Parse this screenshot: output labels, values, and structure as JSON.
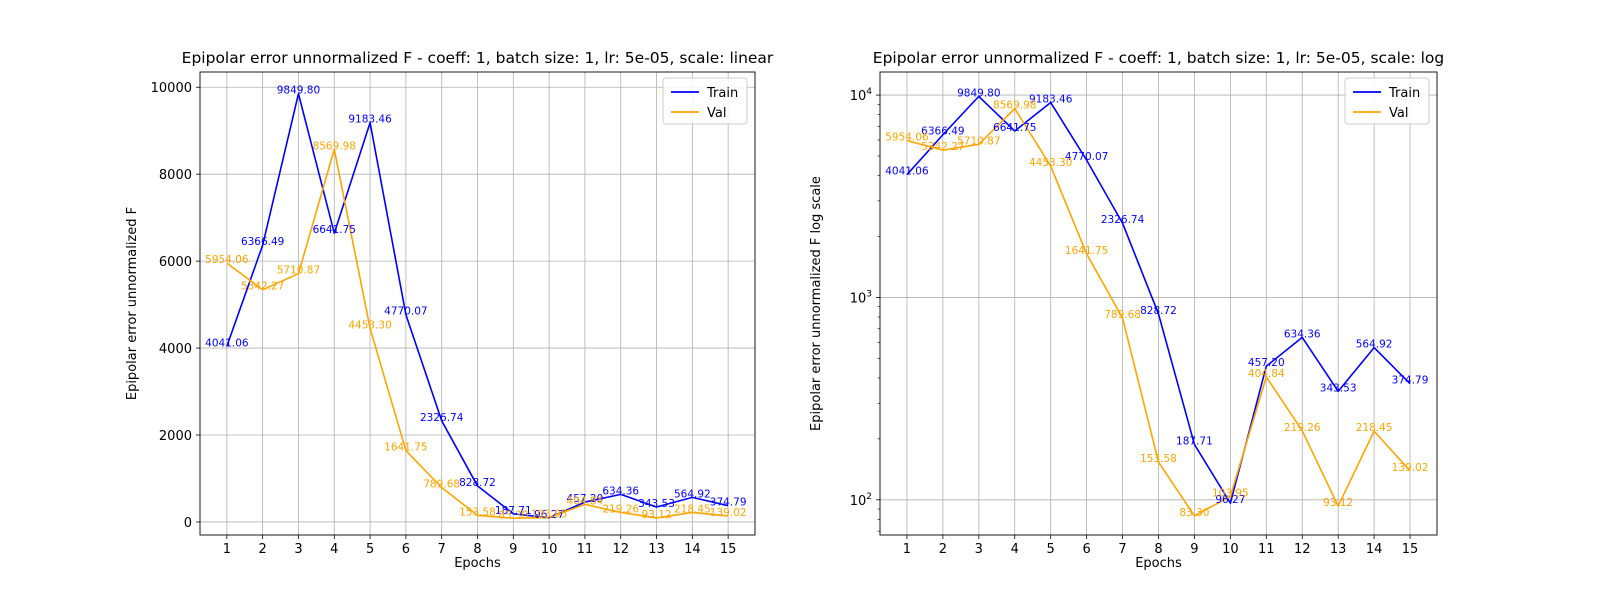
{
  "chart_data": [
    {
      "type": "line",
      "title": "Epipolar error unnormalized F - coeff: 1, batch size: 1, lr: 5e-05, scale: linear",
      "xlabel": "Epochs",
      "ylabel": "Epipolar error unnormalized F",
      "scale": "linear",
      "x": [
        1,
        2,
        3,
        4,
        5,
        6,
        7,
        8,
        9,
        10,
        11,
        12,
        13,
        14,
        15
      ],
      "xlim": [
        0.25,
        15.75
      ],
      "ylim": [
        -300,
        10350
      ],
      "yticks": [
        0,
        2000,
        4000,
        6000,
        8000,
        10000
      ],
      "ytick_labels": [
        "0",
        "2000",
        "4000",
        "6000",
        "8000",
        "10000"
      ],
      "grid": true,
      "legend": "top-right",
      "series": [
        {
          "name": "Train",
          "color": "#0000ff",
          "values": [
            4041.06,
            6366.49,
            9849.8,
            6641.75,
            9183.46,
            4770.07,
            2326.74,
            828.72,
            187.71,
            96.27,
            457.2,
            634.36,
            343.53,
            564.92,
            374.79
          ],
          "labels": [
            "4041.06",
            "6366.49",
            "9849.80",
            "6641.75",
            "9183.46",
            "4770.07",
            "2326.74",
            "828.72",
            "187.71",
            "96.27",
            "457.20",
            "634.36",
            "343.53",
            "564.92",
            "374.79"
          ]
        },
        {
          "name": "Val",
          "color": "#ffa500",
          "values": [
            5954.06,
            5342.27,
            5710.87,
            8569.98,
            4453.3,
            1641.75,
            789.68,
            153.58,
            83.3,
            103.95,
            404.84,
            219.26,
            93.12,
            218.45,
            139.02
          ],
          "labels": [
            "5954.06",
            "5342.27",
            "5710.87",
            "8569.98",
            "4453.30",
            "1641.75",
            "789.68",
            "153.58",
            "83.30",
            "103.95",
            "404.84",
            "219.26",
            "93.12",
            "218.45",
            "139.02"
          ]
        }
      ]
    },
    {
      "type": "line",
      "title": "Epipolar error unnormalized F - coeff: 1, batch size: 1, lr: 5e-05, scale: log",
      "xlabel": "Epochs",
      "ylabel": "Epipolar error unnormalized F log scale",
      "scale": "log",
      "x": [
        1,
        2,
        3,
        4,
        5,
        6,
        7,
        8,
        9,
        10,
        11,
        12,
        13,
        14,
        15
      ],
      "xlim": [
        0.25,
        15.75
      ],
      "ylim": [
        67,
        13000
      ],
      "yticks": [
        100,
        1000,
        10000
      ],
      "ytick_labels": [
        {
          "base": "10",
          "exp": "2"
        },
        {
          "base": "10",
          "exp": "3"
        },
        {
          "base": "10",
          "exp": "4"
        }
      ],
      "grid": true,
      "legend": "top-right",
      "series": [
        {
          "name": "Train",
          "color": "#0000ff",
          "values": [
            4041.06,
            6366.49,
            9849.8,
            6641.75,
            9183.46,
            4770.07,
            2326.74,
            828.72,
            187.71,
            96.27,
            457.2,
            634.36,
            343.53,
            564.92,
            374.79
          ],
          "labels": [
            "4041.06",
            "6366.49",
            "9849.80",
            "6641.75",
            "9183.46",
            "4770.07",
            "2326.74",
            "828.72",
            "187.71",
            "96.27",
            "457.20",
            "634.36",
            "343.53",
            "564.92",
            "374.79"
          ]
        },
        {
          "name": "Val",
          "color": "#ffa500",
          "values": [
            5954.06,
            5342.27,
            5710.87,
            8569.98,
            4453.3,
            1641.75,
            789.68,
            153.58,
            83.3,
            103.95,
            404.84,
            219.26,
            93.12,
            218.45,
            139.02
          ],
          "labels": [
            "5954.06",
            "5342.27",
            "5710.87",
            "8569.98",
            "4453.30",
            "1641.75",
            "789.68",
            "153.58",
            "83.30",
            "103.95",
            "404.84",
            "219.26",
            "93.12",
            "218.45",
            "139.02"
          ]
        }
      ]
    }
  ]
}
